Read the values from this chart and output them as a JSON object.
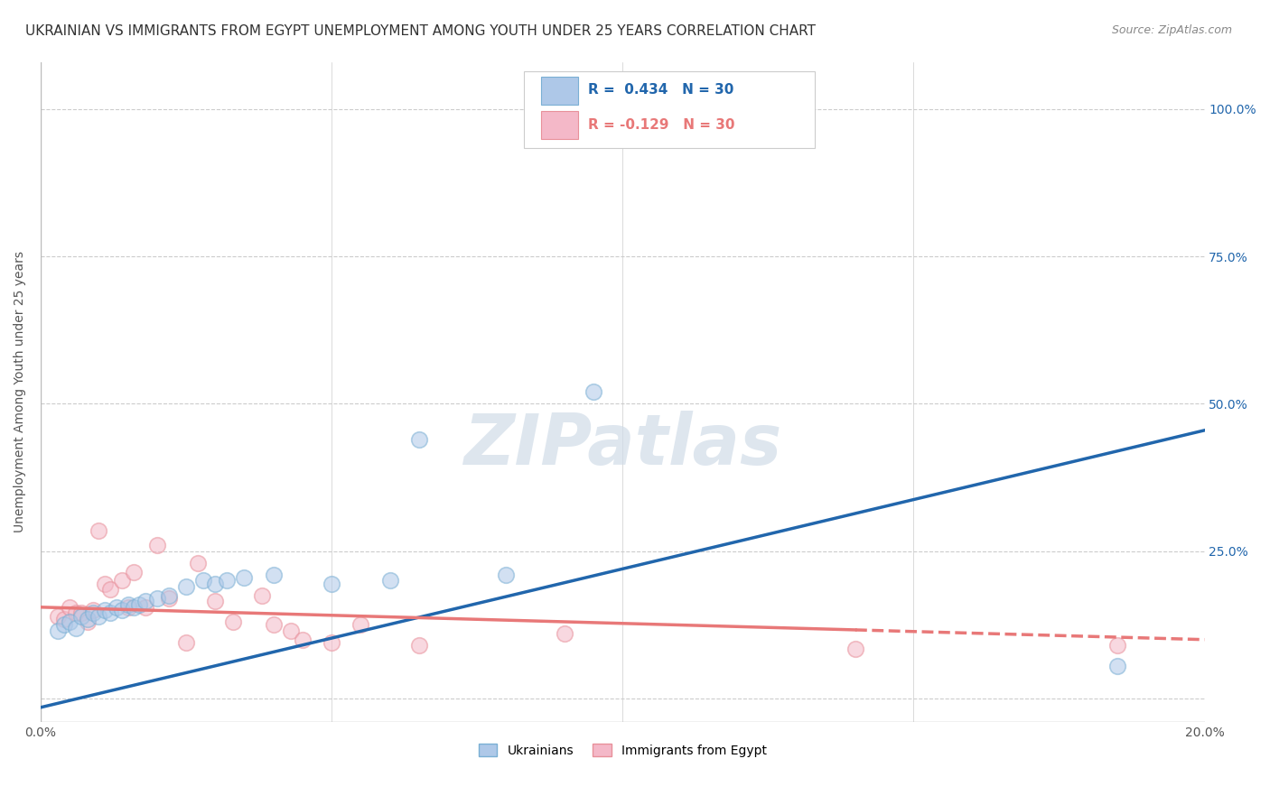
{
  "title": "UKRAINIAN VS IMMIGRANTS FROM EGYPT UNEMPLOYMENT AMONG YOUTH UNDER 25 YEARS CORRELATION CHART",
  "source": "Source: ZipAtlas.com",
  "ylabel": "Unemployment Among Youth under 25 years",
  "watermark": "ZIPatlas",
  "legend_blue_r": "R =  0.434",
  "legend_blue_n": "N = 30",
  "legend_pink_r": "R = -0.129",
  "legend_pink_n": "N = 30",
  "legend_label_blue": "Ukrainians",
  "legend_label_pink": "Immigrants from Egypt",
  "xlim": [
    0.0,
    0.2
  ],
  "ylim": [
    -0.04,
    1.08
  ],
  "yticks": [
    0.0,
    0.25,
    0.5,
    0.75,
    1.0
  ],
  "ytick_labels": [
    "",
    "25.0%",
    "50.0%",
    "75.0%",
    "100.0%"
  ],
  "xticks": [
    0.0,
    0.05,
    0.1,
    0.15,
    0.2
  ],
  "xtick_labels": [
    "0.0%",
    "",
    "",
    "",
    "20.0%"
  ],
  "blue_color": "#aec8e8",
  "blue_edge_color": "#7aafd4",
  "pink_color": "#f4b8c8",
  "pink_edge_color": "#e8909a",
  "blue_line_color": "#2166ac",
  "pink_line_color": "#e87878",
  "blue_points_x": [
    0.003,
    0.004,
    0.005,
    0.006,
    0.007,
    0.008,
    0.009,
    0.01,
    0.011,
    0.012,
    0.013,
    0.014,
    0.015,
    0.016,
    0.017,
    0.018,
    0.02,
    0.022,
    0.025,
    0.028,
    0.03,
    0.032,
    0.035,
    0.04,
    0.05,
    0.06,
    0.065,
    0.08,
    0.095,
    0.185
  ],
  "blue_points_y": [
    0.115,
    0.125,
    0.13,
    0.12,
    0.14,
    0.135,
    0.145,
    0.14,
    0.15,
    0.145,
    0.155,
    0.15,
    0.16,
    0.155,
    0.16,
    0.165,
    0.17,
    0.175,
    0.19,
    0.2,
    0.195,
    0.2,
    0.205,
    0.21,
    0.195,
    0.2,
    0.44,
    0.21,
    0.52,
    0.055
  ],
  "pink_points_x": [
    0.003,
    0.004,
    0.005,
    0.006,
    0.007,
    0.008,
    0.009,
    0.01,
    0.011,
    0.012,
    0.014,
    0.015,
    0.016,
    0.018,
    0.02,
    0.022,
    0.025,
    0.027,
    0.03,
    0.033,
    0.038,
    0.04,
    0.043,
    0.045,
    0.05,
    0.055,
    0.065,
    0.09,
    0.14,
    0.185
  ],
  "pink_points_y": [
    0.14,
    0.135,
    0.155,
    0.145,
    0.145,
    0.13,
    0.15,
    0.285,
    0.195,
    0.185,
    0.2,
    0.155,
    0.215,
    0.155,
    0.26,
    0.17,
    0.095,
    0.23,
    0.165,
    0.13,
    0.175,
    0.125,
    0.115,
    0.1,
    0.095,
    0.125,
    0.09,
    0.11,
    0.085,
    0.09
  ],
  "blue_line_x": [
    0.0,
    0.2
  ],
  "blue_line_y": [
    -0.015,
    0.455
  ],
  "pink_line_x": [
    0.0,
    0.2
  ],
  "pink_line_y": [
    0.155,
    0.1
  ],
  "marker_size": 160,
  "marker_alpha": 0.55,
  "line_width": 2.5,
  "bg_color": "#ffffff",
  "grid_color": "#cccccc",
  "title_fontsize": 11,
  "axis_label_fontsize": 10,
  "tick_fontsize": 10
}
